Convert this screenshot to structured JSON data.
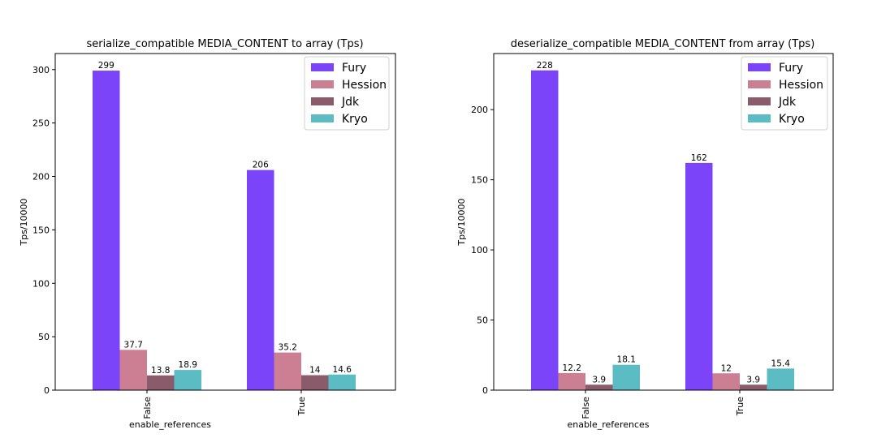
{
  "colors": {
    "Fury": "#7b44f8",
    "Hession": "#cc7f93",
    "Jdk": "#8a5c6b",
    "Kryo": "#5bbcc4"
  },
  "chart_data": [
    {
      "type": "bar",
      "title": "serialize_compatible MEDIA_CONTENT to array (Tps)",
      "xlabel": "enable_references",
      "ylabel": "Tps/10000",
      "categories": [
        "False",
        "True"
      ],
      "ylim": [
        0,
        315
      ],
      "yticks": [
        0,
        50,
        100,
        150,
        200,
        250,
        300
      ],
      "legend": "top-right",
      "grid": false,
      "series": [
        {
          "name": "Fury",
          "values": [
            299,
            206
          ],
          "labels": [
            "299",
            "206"
          ]
        },
        {
          "name": "Hession",
          "values": [
            37.7,
            35.2
          ],
          "labels": [
            "37.7",
            "35.2"
          ]
        },
        {
          "name": "Jdk",
          "values": [
            13.8,
            14
          ],
          "labels": [
            "13.8",
            "14"
          ]
        },
        {
          "name": "Kryo",
          "values": [
            18.9,
            14.6
          ],
          "labels": [
            "18.9",
            "14.6"
          ]
        }
      ]
    },
    {
      "type": "bar",
      "title": "deserialize_compatible MEDIA_CONTENT from array (Tps)",
      "xlabel": "enable_references",
      "ylabel": "Tps/10000",
      "categories": [
        "False",
        "True"
      ],
      "ylim": [
        0,
        240
      ],
      "yticks": [
        0,
        50,
        100,
        150,
        200
      ],
      "legend": "top-right",
      "grid": false,
      "series": [
        {
          "name": "Fury",
          "values": [
            228,
            162
          ],
          "labels": [
            "228",
            "162"
          ]
        },
        {
          "name": "Hession",
          "values": [
            12.2,
            12
          ],
          "labels": [
            "12.2",
            "12"
          ]
        },
        {
          "name": "Jdk",
          "values": [
            3.9,
            3.9
          ],
          "labels": [
            "3.9",
            "3.9"
          ]
        },
        {
          "name": "Kryo",
          "values": [
            18.1,
            15.4
          ],
          "labels": [
            "18.1",
            "15.4"
          ]
        }
      ]
    }
  ]
}
